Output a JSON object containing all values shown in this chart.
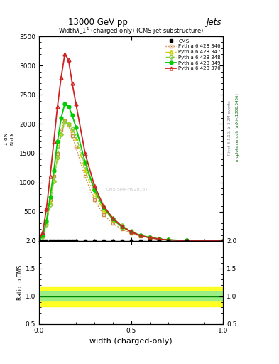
{
  "title_top": "13000 GeV pp",
  "title_right": "Jets",
  "plot_title": "Width$\\lambda\\_1^1$ (charged only) (CMS jet substructure)",
  "xlabel": "width (charged-only)",
  "rivet_label": "Rivet 3.1.10, ≥ 3.2M events",
  "arxiv_label": "mcplots.cern.ch [arXiv:1306.3436]",
  "watermark": "CMS-SMP-H920187",
  "xlim": [
    0,
    1.0
  ],
  "ylim_main": [
    0,
    3500
  ],
  "ylim_ratio": [
    0.5,
    2.0
  ],
  "x_data": [
    0.0,
    0.02,
    0.04,
    0.06,
    0.08,
    0.1,
    0.12,
    0.14,
    0.16,
    0.18,
    0.2,
    0.25,
    0.3,
    0.35,
    0.4,
    0.45,
    0.5,
    0.55,
    0.6,
    0.65,
    0.7,
    0.8,
    1.0
  ],
  "cms_data": [
    2,
    2,
    2,
    2,
    2,
    2,
    2,
    2,
    2,
    2,
    2,
    2,
    2,
    2,
    2,
    2,
    2,
    2,
    2,
    2,
    2,
    2,
    2
  ],
  "py346": [
    10,
    80,
    320,
    700,
    1100,
    1500,
    1900,
    2050,
    1980,
    1800,
    1600,
    1100,
    700,
    450,
    300,
    200,
    130,
    80,
    50,
    30,
    15,
    5,
    1
  ],
  "py347": [
    10,
    80,
    300,
    650,
    1050,
    1450,
    1850,
    2050,
    2000,
    1900,
    1750,
    1200,
    800,
    530,
    360,
    240,
    155,
    95,
    60,
    35,
    18,
    6,
    1
  ],
  "py348": [
    10,
    70,
    280,
    620,
    1020,
    1420,
    1820,
    2030,
    2000,
    1920,
    1800,
    1280,
    870,
    580,
    390,
    260,
    168,
    100,
    65,
    40,
    20,
    7,
    1
  ],
  "py349": [
    10,
    90,
    340,
    750,
    1200,
    1700,
    2100,
    2350,
    2300,
    2150,
    1950,
    1350,
    880,
    570,
    370,
    240,
    155,
    92,
    56,
    33,
    17,
    6,
    1
  ],
  "py370": [
    15,
    150,
    550,
    1100,
    1700,
    2300,
    2800,
    3200,
    3100,
    2700,
    2350,
    1500,
    950,
    600,
    390,
    250,
    155,
    90,
    55,
    32,
    16,
    5,
    1
  ],
  "colors": {
    "cms": "#000000",
    "py346": "#cc8844",
    "py347": "#cccc00",
    "py348": "#88cc44",
    "py349": "#00cc00",
    "py370": "#cc2222"
  },
  "ratio_band_yellow": [
    0.82,
    1.18
  ],
  "ratio_band_green": [
    0.92,
    1.08
  ],
  "ratio_line": 1.0
}
